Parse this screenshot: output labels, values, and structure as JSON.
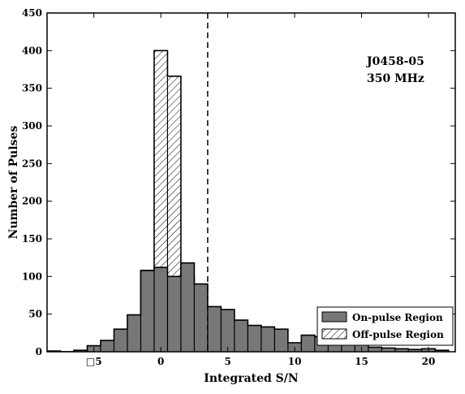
{
  "chart_data": {
    "type": "bar",
    "xlabel": "Integrated S/N",
    "ylabel": "Number of Pulses",
    "xlim": [
      -8.5,
      22
    ],
    "ylim": [
      0,
      450
    ],
    "x_ticks": [
      -5,
      0,
      5,
      10,
      15,
      20
    ],
    "x_tick_labels": [
      "□5",
      "0",
      "5",
      "10",
      "15",
      "20"
    ],
    "y_ticks": [
      0,
      50,
      100,
      150,
      200,
      250,
      300,
      350,
      400,
      450
    ],
    "bin_edges": [
      -8.5,
      -7.5,
      -6.5,
      -5.5,
      -4.5,
      -3.5,
      -2.5,
      -1.5,
      -0.5,
      0.5,
      1.5,
      2.5,
      3.5,
      4.5,
      5.5,
      6.5,
      7.5,
      8.5,
      9.5,
      10.5,
      11.5,
      12.5,
      13.5,
      14.5,
      15.5,
      16.5,
      17.5,
      18.5,
      19.5,
      20.5,
      21.5
    ],
    "series": [
      {
        "name": "On-pulse Region",
        "style": "filled",
        "values": [
          1,
          0,
          2,
          8,
          15,
          30,
          49,
          108,
          112,
          100,
          118,
          90,
          60,
          56,
          42,
          35,
          33,
          30,
          12,
          22,
          20,
          20,
          18,
          15,
          6,
          5,
          4,
          3,
          4,
          2
        ]
      },
      {
        "name": "Off-pulse Region",
        "style": "hatched",
        "values": [
          0,
          0,
          0,
          0,
          0,
          0,
          8,
          108,
          400,
          366,
          98,
          2,
          0,
          0,
          0,
          0,
          0,
          0,
          0,
          0,
          0,
          0,
          0,
          0,
          0,
          0,
          0,
          0,
          0,
          0
        ]
      }
    ],
    "threshold_x": 3.5,
    "annotation_lines": [
      "J0458-05",
      "350 MHz"
    ],
    "legend_position": "bottom-right",
    "grid": false,
    "colors": {
      "on_pulse_fill": "#777777",
      "outline": "#000000",
      "off_pulse_fill": "#ffffff"
    }
  }
}
